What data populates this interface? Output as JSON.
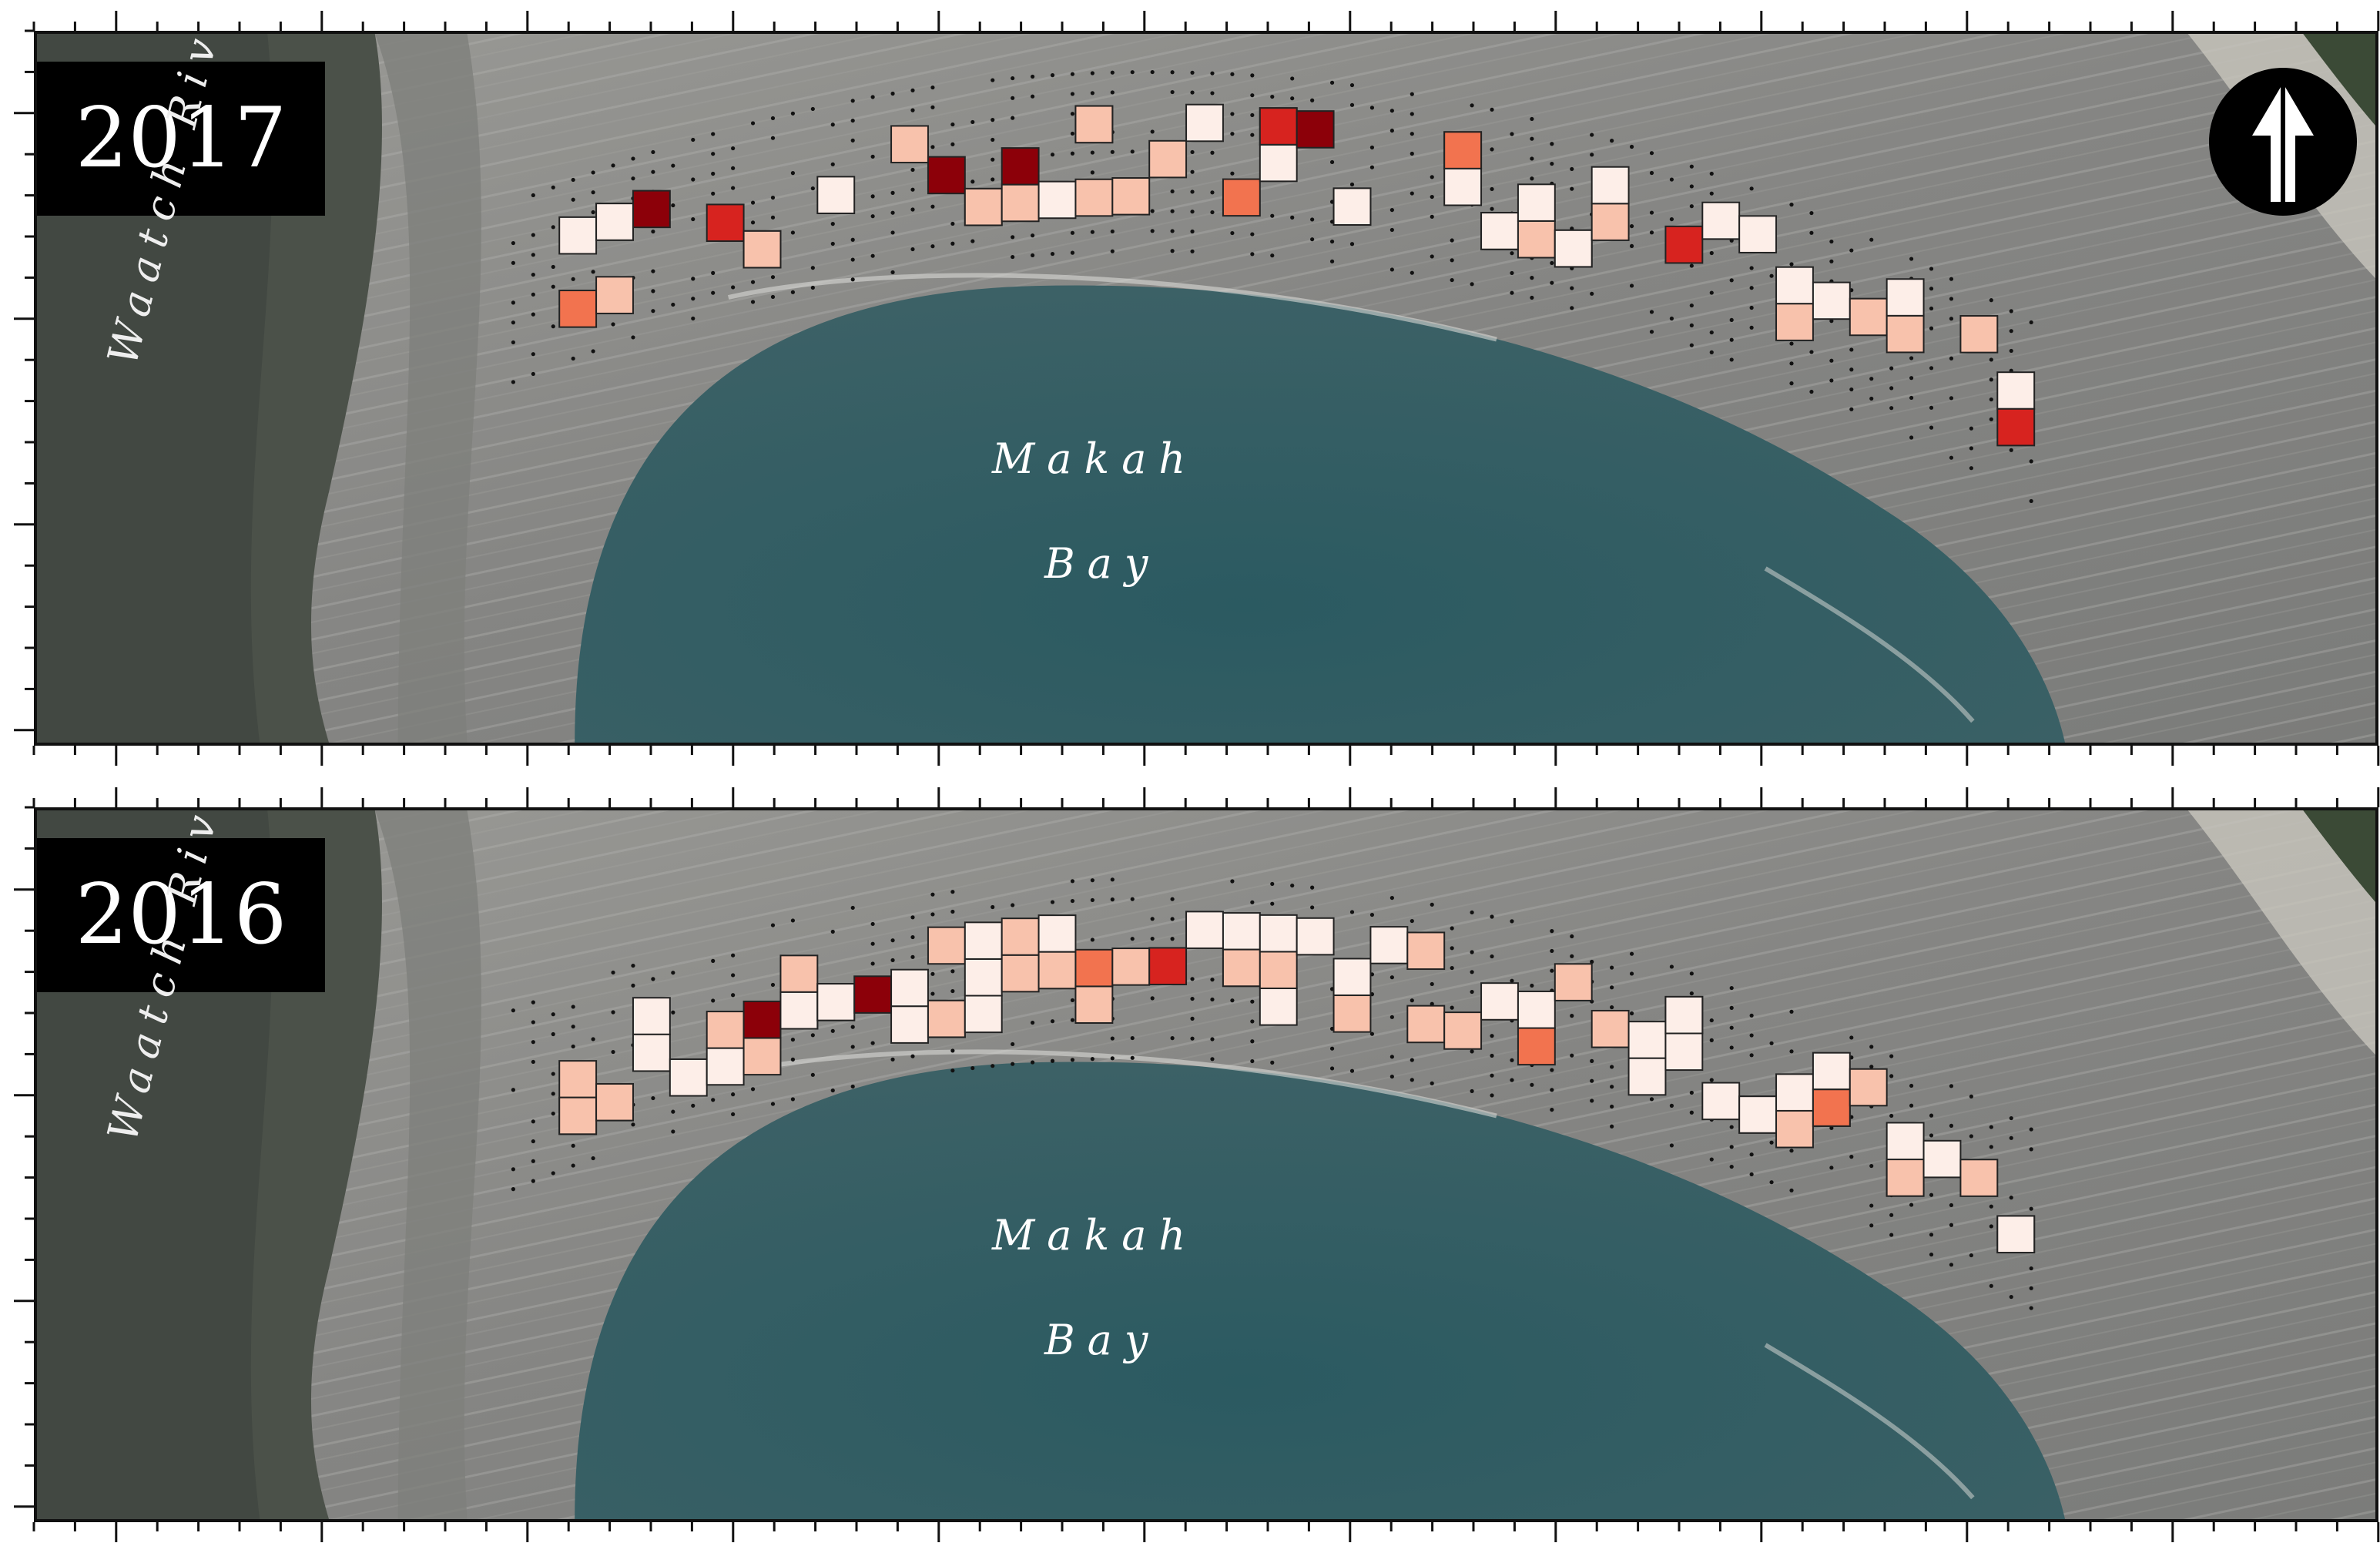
{
  "panels": [
    {
      "year": "2017",
      "labels": {
        "bay_line1": "Makah",
        "bay_line2": "Bay",
        "river": "Waatch River"
      },
      "north_arrow": "north-arrow-icon"
    },
    {
      "year": "2016",
      "labels": {
        "bay_line1": "Makah",
        "bay_line2": "Bay",
        "river": "Waatch River"
      }
    }
  ],
  "colors": {
    "land_forest": "#4b5149",
    "beach": "#8a8a86",
    "water": "#2f5a60",
    "scale_lightest": "#fdeee8",
    "scale_light": "#f8c2ac",
    "scale_mid": "#f2734f",
    "scale_strong": "#d7231f",
    "scale_max": "#8c0009",
    "grid_dot": "#111111"
  }
}
